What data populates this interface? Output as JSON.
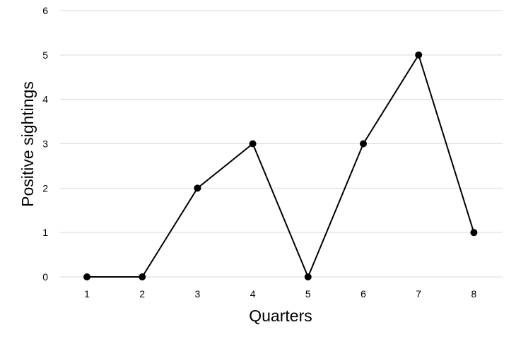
{
  "chart_data": {
    "type": "line",
    "title": "",
    "xlabel": "Quarters",
    "ylabel": "Positive sightings",
    "x": [
      1,
      2,
      3,
      4,
      5,
      6,
      7,
      8
    ],
    "x_tick_labels": [
      "1",
      "2",
      "3",
      "4",
      "5",
      "6",
      "7",
      "8"
    ],
    "y_ticks": [
      0,
      1,
      2,
      3,
      4,
      5,
      6
    ],
    "ylim": [
      0,
      6
    ],
    "grid": true,
    "legend": "none",
    "series": [
      {
        "values": [
          0,
          0,
          2,
          3,
          0,
          3,
          5,
          1
        ],
        "color": "#000000",
        "marker": "circle"
      }
    ]
  }
}
